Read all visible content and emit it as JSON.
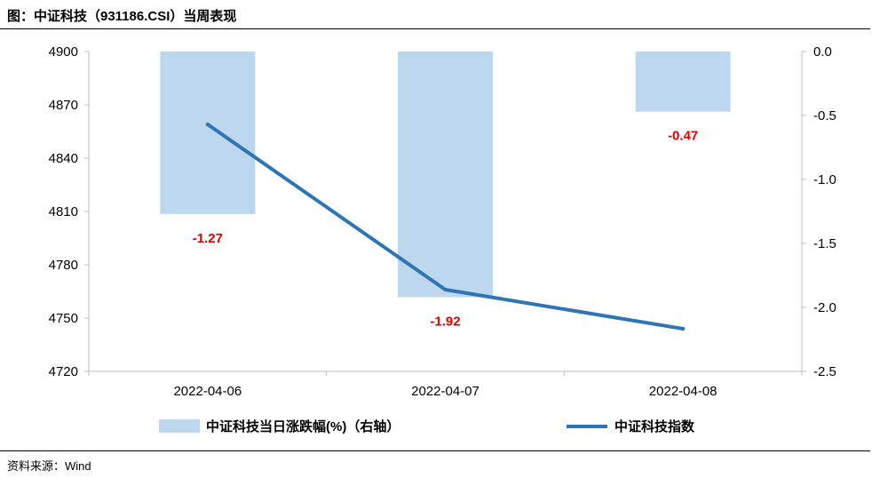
{
  "header": {
    "title": "图：中证科技（931186.CSI）当周表现"
  },
  "footer": {
    "source": "资料来源：Wind"
  },
  "chart_data": {
    "type": "bar+line",
    "categories": [
      "2022-04-06",
      "2022-04-07",
      "2022-04-08"
    ],
    "series": [
      {
        "name": "中证科技当日涨跌幅(%)（右轴）",
        "type": "bar",
        "axis": "right",
        "values": [
          -1.27,
          -1.92,
          -0.47
        ],
        "color": "#bdd7ee"
      },
      {
        "name": "中证科技指数",
        "type": "line",
        "axis": "left",
        "values": [
          4859,
          4766,
          4744
        ],
        "color": "#2e75b6"
      }
    ],
    "left_axis": {
      "ylim": [
        4720,
        4900
      ],
      "ticks": [
        "4720",
        "4750",
        "4780",
        "4810",
        "4840",
        "4870",
        "4900"
      ]
    },
    "right_axis": {
      "ylim": [
        -2.5,
        0.0
      ],
      "ticks": [
        "0.0",
        "-0.5",
        "-1.0",
        "-1.5",
        "-2.0",
        "-2.5"
      ]
    },
    "data_labels": [
      "-1.27",
      "-1.92",
      "-0.47"
    ],
    "data_label_color": "#e00000",
    "grid": false,
    "legend_position": "bottom"
  }
}
